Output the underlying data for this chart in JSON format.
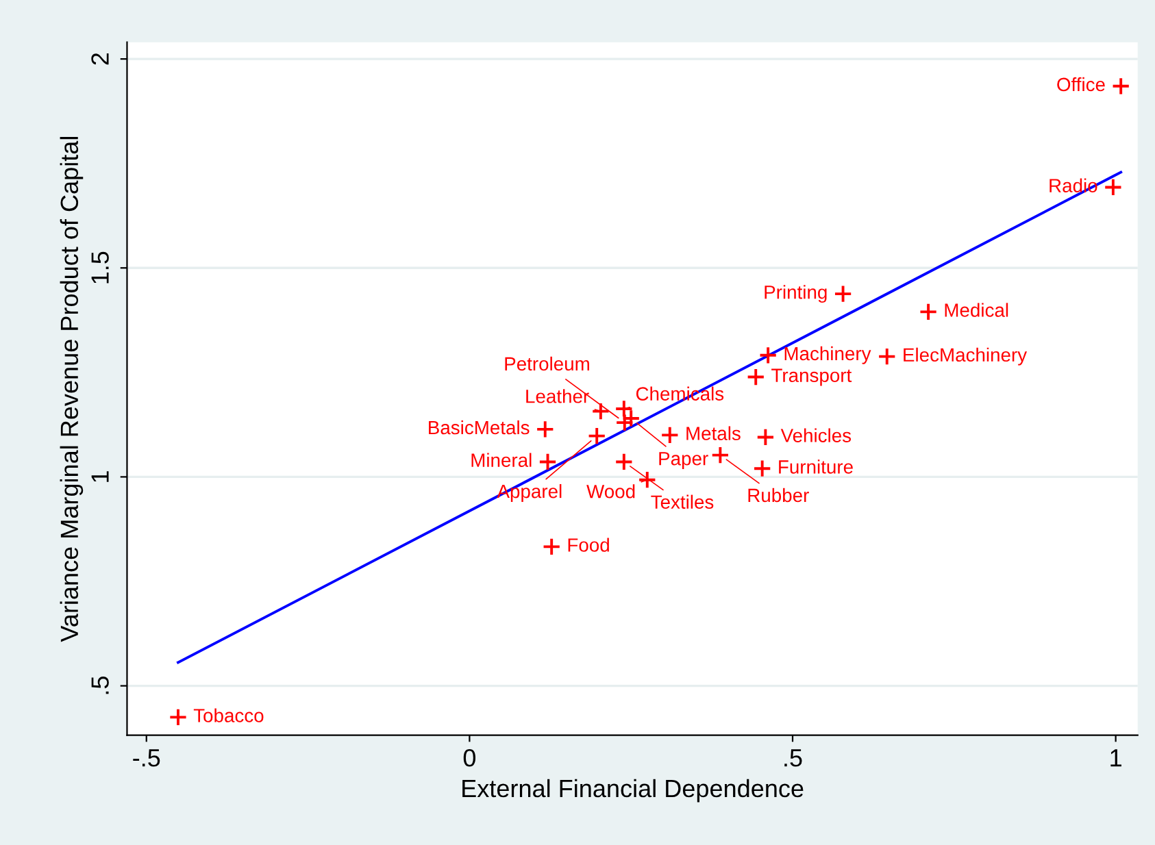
{
  "chart_data": {
    "type": "scatter",
    "xlabel": "External Financial Dependence",
    "ylabel": "Variance Marginal Revenue Product of Capital",
    "xlim": [
      -0.53,
      1.034
    ],
    "ylim": [
      0.382,
      2.04
    ],
    "xticks": [
      {
        "value": -0.5,
        "label": "-.5"
      },
      0,
      {
        "value": 0.5,
        "label": ".5"
      },
      1
    ],
    "yticks": [
      {
        "value": 0.5,
        "label": ".5"
      },
      1,
      1.5,
      2
    ],
    "grid": "y",
    "series": [
      {
        "color": "#ff0000",
        "marker": "cross",
        "x": [
          1.008,
          0.996,
          0.578,
          0.71,
          0.462,
          0.646,
          0.443,
          0.239,
          0.203,
          0.25,
          0.24,
          0.117,
          0.458,
          0.197,
          0.31,
          0.121,
          0.239,
          0.388,
          0.453,
          0.275,
          0.127,
          -0.451
        ],
        "values": [
          1.935,
          1.693,
          1.438,
          1.395,
          1.291,
          1.288,
          1.239,
          1.163,
          1.157,
          1.14,
          1.13,
          1.114,
          1.095,
          1.098,
          1.1,
          1.036,
          1.036,
          1.052,
          1.02,
          0.993,
          0.833,
          0.425
        ],
        "value_labels": [
          "Office",
          "Radio",
          "Printing",
          "Medical",
          "Machinery",
          "ElecMachinery",
          "Transport",
          "Chemicals",
          "Leather",
          "Paper",
          "Petroleum",
          "BasicMetals",
          "Vehicles",
          "Apparel",
          "Metals",
          "Mineral",
          "Textiles",
          "Rubber",
          "Furniture",
          "Wood",
          "Food",
          "Tobacco"
        ]
      },
      {
        "type": "line",
        "color": "#0000ff",
        "x": [
          -0.451,
          1.008
        ],
        "values": [
          0.556,
          1.729
        ]
      }
    ]
  }
}
